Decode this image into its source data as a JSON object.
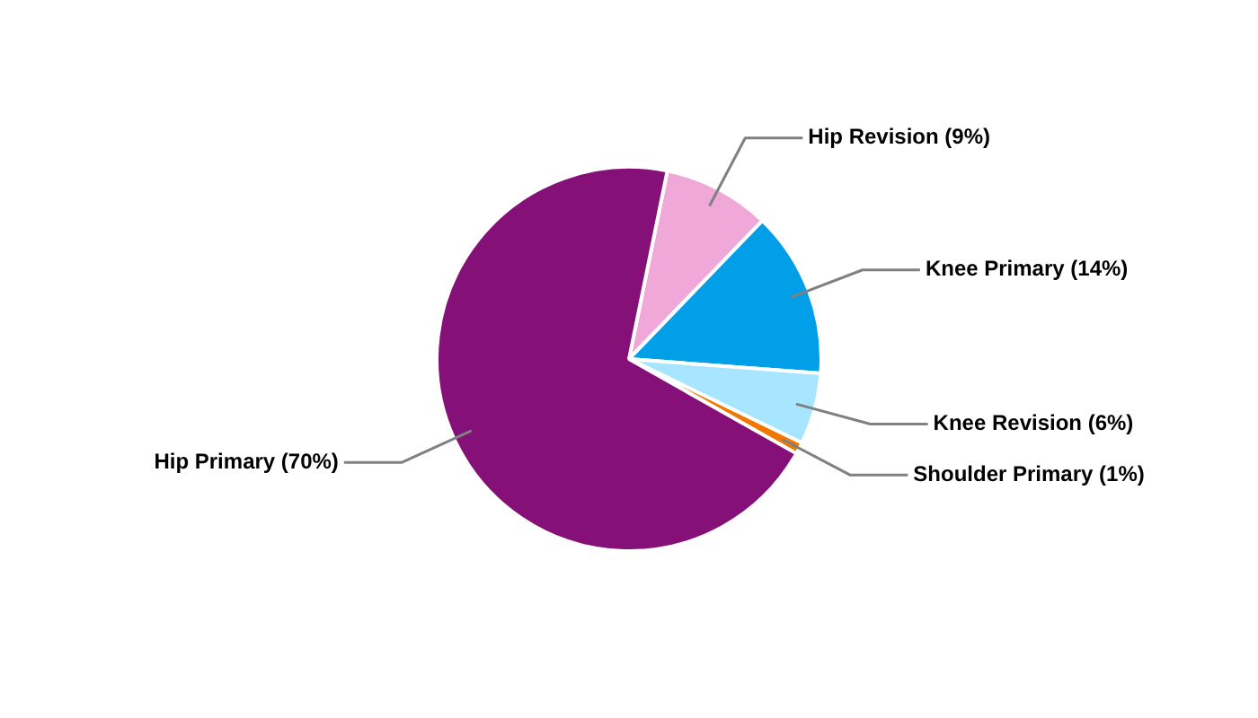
{
  "chart_data": {
    "type": "pie",
    "categories": [
      "Hip Revision (9%)",
      "Knee Primary (14%)",
      "Knee Revision (6%)",
      "Shoulder Primary (1%)",
      "Hip Primary (70%)"
    ],
    "values": [
      9,
      14,
      6,
      1,
      70
    ],
    "colors": [
      "#f0a8d8",
      "#009fe8",
      "#a8e6ff",
      "#f07800",
      "#841078"
    ],
    "legend": false
  }
}
